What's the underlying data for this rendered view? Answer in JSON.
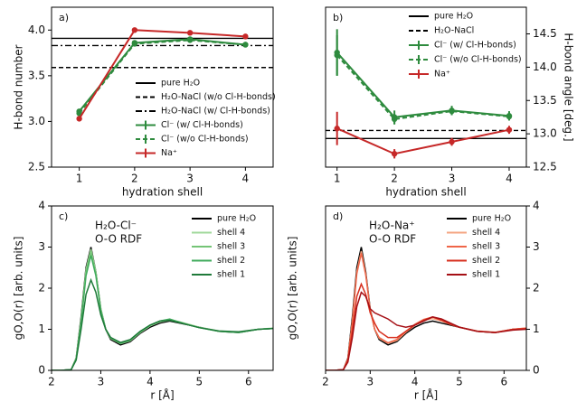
{
  "chart_data": [
    {
      "type": "line",
      "label": "a)",
      "xlabel": "hydration shell",
      "ylabel": "H-bond number",
      "x": [
        1,
        2,
        3,
        4
      ],
      "xlim": [
        0.5,
        4.5
      ],
      "xticks": [
        1,
        2,
        3,
        4
      ],
      "ylim": [
        2.5,
        4.25
      ],
      "yticks": [
        2.5,
        {
          "value": 3,
          "label": "3.0"
        },
        3.5,
        {
          "value": 4,
          "label": "4.0"
        }
      ],
      "yaxis_side": "left",
      "ylabel_side": "left",
      "hlines": [
        {
          "name": "pure H₂O",
          "value": 3.91,
          "color": "#000000",
          "linestyle": "solid"
        },
        {
          "name": "H₂O-NaCl (w/o Cl-H-bonds)",
          "value": 3.59,
          "color": "#000000",
          "linestyle": "dashed"
        },
        {
          "name": "H₂O-NaCl (w/ Cl-H-bonds)",
          "value": 3.83,
          "color": "#000000",
          "linestyle": "dashdot"
        }
      ],
      "series": [
        {
          "name": "Cl⁻ (w/ Cl-H-bonds)",
          "color": "#2e8b3e",
          "linestyle": "solid",
          "values": [
            3.11,
            3.86,
            3.9,
            3.84
          ]
        },
        {
          "name": "Cl⁻ (w/o Cl-H-bonds)",
          "color": "#2e8b3e",
          "linestyle": "dashed",
          "values": [
            3.09,
            3.85,
            3.89,
            3.84
          ]
        },
        {
          "name": "Na⁺",
          "color": "#c62828",
          "linestyle": "solid",
          "values": [
            3.03,
            4.0,
            3.97,
            3.93
          ]
        }
      ]
    },
    {
      "type": "line",
      "label": "b)",
      "xlabel": "hydration shell",
      "ylabel": "H-bond angle [deg.]",
      "x": [
        1,
        2,
        3,
        4
      ],
      "xlim": [
        0.8,
        4.3
      ],
      "xticks": [
        1,
        2,
        3,
        4
      ],
      "ylim": [
        12.5,
        14.9
      ],
      "yticks": [
        12.5,
        {
          "value": 13,
          "label": "13.0"
        },
        13.5,
        {
          "value": 14,
          "label": "14.0"
        },
        14.5
      ],
      "yaxis_side": "right",
      "ylabel_side": "right",
      "hlines": [
        {
          "name": "pure H₂O",
          "value": 12.93,
          "color": "#000000",
          "linestyle": "solid"
        },
        {
          "name": "H₂O-NaCl",
          "value": 13.05,
          "color": "#000000",
          "linestyle": "dashed"
        }
      ],
      "series": [
        {
          "name": "Cl⁻ (w/ Cl-H-bonds)",
          "color": "#2e8b3e",
          "linestyle": "solid",
          "values": [
            14.22,
            13.25,
            13.35,
            13.27
          ],
          "errors": [
            0.35,
            0.1,
            0.07,
            0.07
          ]
        },
        {
          "name": "Cl⁻ (w/o Cl-H-bonds)",
          "color": "#2e8b3e",
          "linestyle": "dashed",
          "values": [
            14.18,
            13.22,
            13.34,
            13.26
          ],
          "errors": [
            0.3,
            0.08,
            0.06,
            0.06
          ]
        },
        {
          "name": "Na⁺",
          "color": "#c62828",
          "linestyle": "solid",
          "values": [
            13.08,
            12.7,
            12.88,
            13.06
          ],
          "errors": [
            0.25,
            0.07,
            0.06,
            0.06
          ]
        }
      ]
    },
    {
      "type": "line",
      "label": "c)",
      "annotation": [
        "H₂O-Cl⁻",
        "O-O RDF"
      ],
      "xlabel": "r [Å]",
      "ylabel": "gO,O(r) [arb. units]",
      "x": [
        2.0,
        2.2,
        2.4,
        2.5,
        2.6,
        2.7,
        2.8,
        2.9,
        3.0,
        3.1,
        3.2,
        3.4,
        3.6,
        3.8,
        4.0,
        4.2,
        4.4,
        4.6,
        4.8,
        5.0,
        5.4,
        5.8,
        6.2,
        6.5
      ],
      "xlim": [
        2,
        6.5
      ],
      "xticks": [
        2,
        3,
        4,
        5,
        6
      ],
      "ylim": [
        0,
        4
      ],
      "yticks": [
        0,
        1,
        2,
        3,
        4
      ],
      "yaxis_side": "left",
      "ylabel_side": "left",
      "series": [
        {
          "name": "pure H₂O",
          "color": "#000000",
          "linestyle": "solid",
          "values": [
            0,
            0,
            0.02,
            0.3,
            1.3,
            2.5,
            3.0,
            2.4,
            1.5,
            1.0,
            0.75,
            0.62,
            0.7,
            0.9,
            1.05,
            1.15,
            1.2,
            1.15,
            1.1,
            1.05,
            0.95,
            0.92,
            1.0,
            1.02
          ]
        },
        {
          "name": "shell 4",
          "color": "#a1d99b",
          "linestyle": "solid",
          "values": [
            0,
            0,
            0.02,
            0.3,
            1.25,
            2.45,
            2.95,
            2.4,
            1.5,
            1.0,
            0.78,
            0.65,
            0.72,
            0.92,
            1.08,
            1.18,
            1.22,
            1.18,
            1.12,
            1.05,
            0.96,
            0.93,
            1.0,
            1.03
          ]
        },
        {
          "name": "shell 3",
          "color": "#74c476",
          "linestyle": "solid",
          "values": [
            0,
            0,
            0.02,
            0.28,
            1.2,
            2.4,
            2.9,
            2.35,
            1.48,
            1.0,
            0.78,
            0.66,
            0.73,
            0.93,
            1.1,
            1.2,
            1.24,
            1.18,
            1.1,
            1.04,
            0.95,
            0.93,
            1.0,
            1.02
          ]
        },
        {
          "name": "shell 2",
          "color": "#41ab5d",
          "linestyle": "solid",
          "values": [
            0,
            0,
            0.02,
            0.28,
            1.15,
            2.3,
            2.8,
            2.3,
            1.45,
            1.0,
            0.8,
            0.66,
            0.74,
            0.94,
            1.1,
            1.2,
            1.25,
            1.17,
            1.1,
            1.04,
            0.95,
            0.92,
            1.0,
            1.02
          ]
        },
        {
          "name": "shell 1",
          "color": "#1f7a3a",
          "linestyle": "solid",
          "values": [
            0,
            0,
            0.02,
            0.25,
            1.0,
            1.85,
            2.2,
            1.9,
            1.35,
            1.0,
            0.8,
            0.68,
            0.75,
            0.95,
            1.1,
            1.2,
            1.22,
            1.16,
            1.1,
            1.04,
            0.96,
            0.94,
            1.0,
            1.02
          ]
        }
      ]
    },
    {
      "type": "line",
      "label": "d)",
      "annotation": [
        "H₂O-Na⁺",
        "O-O RDF"
      ],
      "xlabel": "r [Å]",
      "ylabel": "gO,O(r) [arb. units]",
      "x": [
        2.0,
        2.2,
        2.4,
        2.5,
        2.6,
        2.7,
        2.8,
        2.9,
        3.0,
        3.1,
        3.2,
        3.4,
        3.6,
        3.8,
        4.0,
        4.2,
        4.4,
        4.6,
        4.8,
        5.0,
        5.4,
        5.8,
        6.2,
        6.5
      ],
      "xlim": [
        2,
        6.5
      ],
      "xticks": [
        2,
        3,
        4,
        5,
        6
      ],
      "ylim": [
        0,
        4
      ],
      "yticks": [
        0,
        1,
        2,
        3,
        4
      ],
      "yaxis_side": "right",
      "ylabel_side": "left",
      "series": [
        {
          "name": "pure H₂O",
          "color": "#000000",
          "linestyle": "solid",
          "values": [
            0,
            0,
            0.02,
            0.3,
            1.3,
            2.5,
            3.0,
            2.4,
            1.5,
            1.0,
            0.75,
            0.62,
            0.7,
            0.9,
            1.05,
            1.15,
            1.2,
            1.15,
            1.1,
            1.05,
            0.95,
            0.92,
            1.0,
            1.02
          ]
        },
        {
          "name": "shell 4",
          "color": "#f4a582",
          "linestyle": "solid",
          "values": [
            0,
            0,
            0.02,
            0.28,
            1.2,
            2.4,
            2.9,
            2.35,
            1.48,
            1.0,
            0.78,
            0.66,
            0.73,
            0.93,
            1.1,
            1.22,
            1.26,
            1.2,
            1.12,
            1.05,
            0.96,
            0.93,
            1.0,
            1.03
          ]
        },
        {
          "name": "shell 3",
          "color": "#ef6548",
          "linestyle": "solid",
          "values": [
            0,
            0,
            0.02,
            0.28,
            1.18,
            2.35,
            2.85,
            2.32,
            1.47,
            1.0,
            0.8,
            0.67,
            0.75,
            0.95,
            1.12,
            1.24,
            1.3,
            1.22,
            1.12,
            1.05,
            0.95,
            0.92,
            1.0,
            1.03
          ]
        },
        {
          "name": "shell 2",
          "color": "#d7301f",
          "linestyle": "solid",
          "values": [
            0,
            0,
            0.02,
            0.25,
            0.95,
            1.8,
            2.1,
            1.85,
            1.4,
            1.15,
            0.95,
            0.8,
            0.8,
            0.95,
            1.1,
            1.22,
            1.3,
            1.22,
            1.12,
            1.05,
            0.95,
            0.92,
            1.0,
            1.02
          ]
        },
        {
          "name": "shell 1",
          "color": "#a50f15",
          "linestyle": "solid",
          "values": [
            0,
            0,
            0.02,
            0.2,
            0.8,
            1.55,
            1.9,
            1.8,
            1.5,
            1.4,
            1.35,
            1.25,
            1.1,
            1.05,
            1.1,
            1.2,
            1.3,
            1.25,
            1.15,
            1.05,
            0.95,
            0.92,
            0.98,
            1.0
          ]
        }
      ]
    }
  ]
}
